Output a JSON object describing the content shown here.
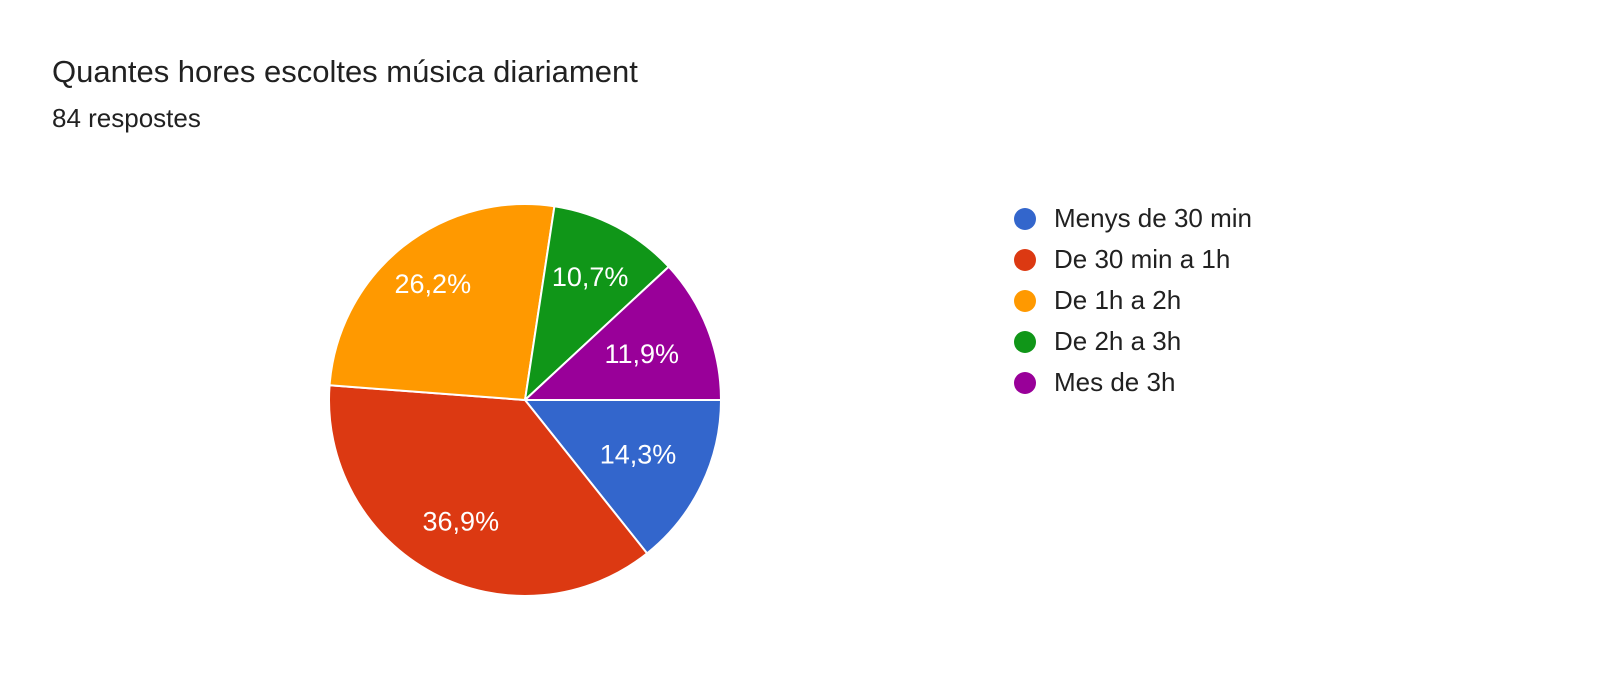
{
  "header": {
    "title": "Quantes hores escoltes música diariament",
    "subtitle": "84 respostes"
  },
  "chart_data": {
    "type": "pie",
    "title": "Quantes hores escoltes música diariament",
    "subtitle": "84 respostes",
    "total_responses_text": "84 respostes",
    "categories": [
      "Menys de 30 min",
      "De 30 min a 1h",
      "De 1h a 2h",
      "De 2h a 3h",
      "Mes de 3h"
    ],
    "values": [
      14.3,
      36.9,
      26.2,
      10.7,
      11.9
    ],
    "slice_labels": [
      "14,3%",
      "36,9%",
      "26,2%",
      "10,7%",
      "11,9%"
    ],
    "colors": [
      "#3366CC",
      "#DC3912",
      "#FF9900",
      "#109618",
      "#990099"
    ],
    "slice_label_color": "#ffffff",
    "start_angle_deg": 90,
    "direction": "clockwise",
    "legend_position": "right",
    "background_color": "#ffffff",
    "text_color": "#212121"
  }
}
